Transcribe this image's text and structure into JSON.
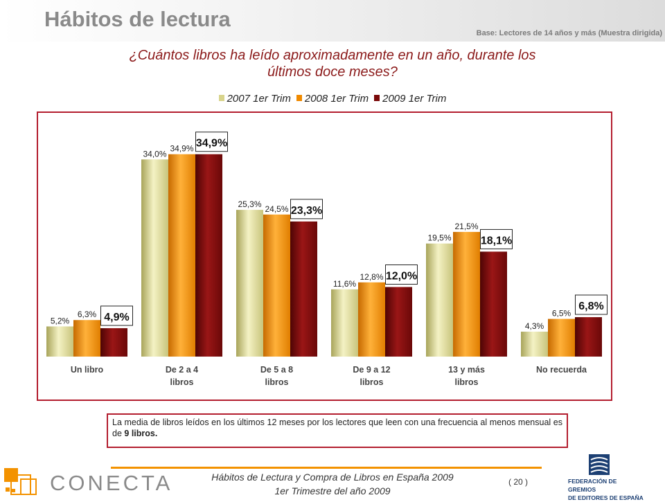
{
  "header": {
    "title": "Hábitos de lectura",
    "base": "Base: Lectores de 14 años y más (Muestra dirigida)"
  },
  "question": {
    "line1": "¿Cuántos libros ha leído aproximadamente en un año, durante los",
    "line2": "últimos doce meses?"
  },
  "note": {
    "text": "La media de libros leídos en los últimos 12 meses por los lectores que leen con una frecuencia al menos mensual es de ",
    "emphasis": "9 libros."
  },
  "footer": {
    "line1": "Hábitos de Lectura y Compra de Libros en España 2009",
    "line2": "1er Trimestre del año 2009",
    "page": "( 20 )"
  },
  "logos": {
    "conecta": "CONECTA",
    "federacion": [
      "FEDERACIÓN DE GREMIOS",
      "DE EDITORES DE ESPAÑA"
    ]
  },
  "colors": {
    "accent_red": "#b31d2e",
    "orange": "#f39200",
    "series": [
      "#d8d48c",
      "#f08a00",
      "#7a0a0a"
    ]
  },
  "chart_data": {
    "type": "bar",
    "categories": [
      "Un libro",
      "De 2 a 4 libros",
      "De 5 a 8 libros",
      "De 9 a 12 libros",
      "13 y más libros",
      "No recuerda"
    ],
    "category_lines": [
      [
        "Un libro"
      ],
      [
        "De 2 a 4",
        "libros"
      ],
      [
        "De 5 a 8",
        "libros"
      ],
      [
        "De 9 a 12",
        "libros"
      ],
      [
        "13 y más",
        "libros"
      ],
      [
        "No recuerda"
      ]
    ],
    "series": [
      {
        "name": "2007 1er Trim",
        "values": [
          5.2,
          34.0,
          25.3,
          11.6,
          19.5,
          4.3
        ],
        "labels": [
          "5,2%",
          "34,0%",
          "25,3%",
          "11,6%",
          "19,5%",
          "4,3%"
        ]
      },
      {
        "name": "2008 1er Trim",
        "values": [
          6.3,
          34.9,
          24.5,
          12.8,
          21.5,
          6.5
        ],
        "labels": [
          "6,3%",
          "34,9%",
          "24,5%",
          "12,8%",
          "21,5%",
          "6,5%"
        ]
      },
      {
        "name": "2009 1er Trim",
        "values": [
          4.9,
          34.9,
          23.3,
          12.0,
          18.1,
          6.8
        ],
        "labels": [
          "4,9%",
          "34,9%",
          "23,3%",
          "12,0%",
          "18,1%",
          "6,8%"
        ]
      }
    ],
    "highlighted_series": "2009 1er Trim",
    "ylim": [
      0,
      40
    ],
    "grid": false,
    "legend": "top"
  }
}
